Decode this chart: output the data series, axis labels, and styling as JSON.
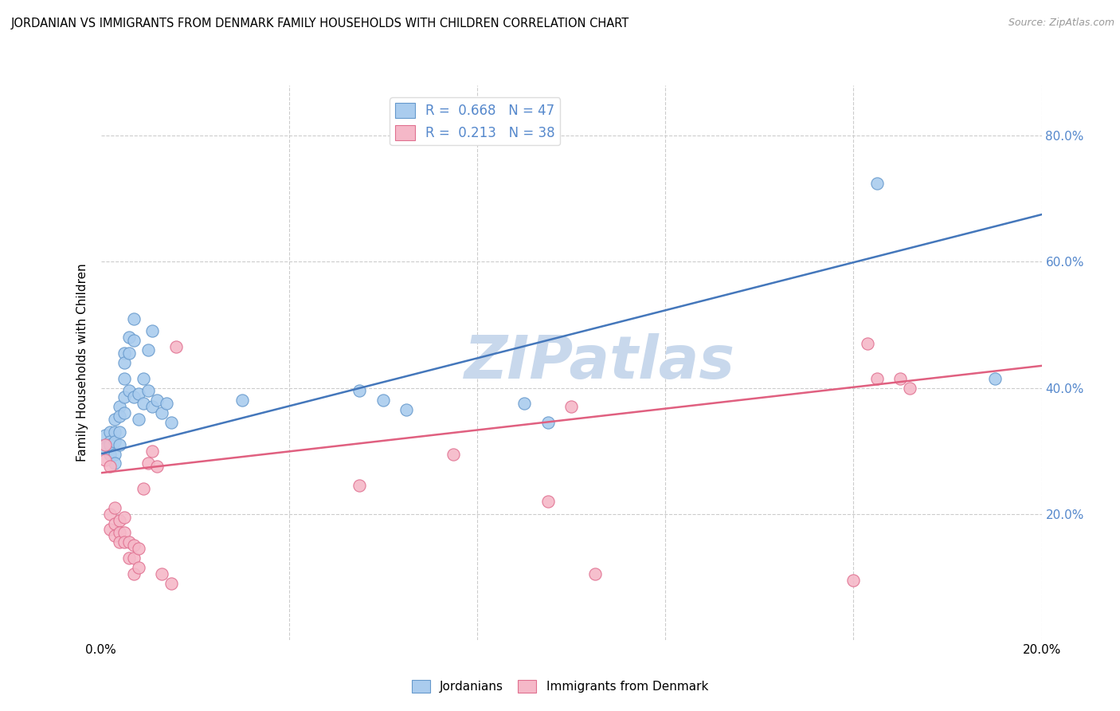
{
  "title": "JORDANIAN VS IMMIGRANTS FROM DENMARK FAMILY HOUSEHOLDS WITH CHILDREN CORRELATION CHART",
  "source": "Source: ZipAtlas.com",
  "ylabel": "Family Households with Children",
  "xlim": [
    0.0,
    0.2
  ],
  "ylim": [
    0.0,
    0.88
  ],
  "xticks": [
    0.0,
    0.04,
    0.08,
    0.12,
    0.16,
    0.2
  ],
  "yticks_right": [
    0.2,
    0.4,
    0.6,
    0.8
  ],
  "blue_R": 0.668,
  "blue_N": 47,
  "pink_R": 0.213,
  "pink_N": 38,
  "blue_fill_color": "#AACCEE",
  "pink_fill_color": "#F5B8C8",
  "blue_edge_color": "#6699CC",
  "pink_edge_color": "#E07090",
  "blue_line_color": "#4477BB",
  "pink_line_color": "#E06080",
  "tick_label_color": "#5588CC",
  "watermark_color": "#C8D8EC",
  "blue_scatter_x": [
    0.001,
    0.001,
    0.001,
    0.002,
    0.002,
    0.002,
    0.002,
    0.003,
    0.003,
    0.003,
    0.003,
    0.003,
    0.004,
    0.004,
    0.004,
    0.004,
    0.005,
    0.005,
    0.005,
    0.005,
    0.005,
    0.006,
    0.006,
    0.006,
    0.007,
    0.007,
    0.007,
    0.008,
    0.008,
    0.009,
    0.009,
    0.01,
    0.01,
    0.011,
    0.011,
    0.012,
    0.013,
    0.014,
    0.015,
    0.03,
    0.055,
    0.06,
    0.065,
    0.09,
    0.095,
    0.165,
    0.19
  ],
  "blue_scatter_y": [
    0.31,
    0.325,
    0.305,
    0.33,
    0.315,
    0.295,
    0.31,
    0.35,
    0.33,
    0.315,
    0.295,
    0.28,
    0.37,
    0.355,
    0.33,
    0.31,
    0.455,
    0.44,
    0.415,
    0.385,
    0.36,
    0.48,
    0.455,
    0.395,
    0.51,
    0.475,
    0.385,
    0.39,
    0.35,
    0.415,
    0.375,
    0.46,
    0.395,
    0.49,
    0.37,
    0.38,
    0.36,
    0.375,
    0.345,
    0.38,
    0.395,
    0.38,
    0.365,
    0.375,
    0.345,
    0.725,
    0.415
  ],
  "pink_scatter_x": [
    0.001,
    0.001,
    0.002,
    0.002,
    0.002,
    0.003,
    0.003,
    0.003,
    0.004,
    0.004,
    0.004,
    0.005,
    0.005,
    0.005,
    0.006,
    0.006,
    0.007,
    0.007,
    0.007,
    0.008,
    0.008,
    0.009,
    0.01,
    0.011,
    0.012,
    0.013,
    0.015,
    0.016,
    0.055,
    0.075,
    0.095,
    0.1,
    0.105,
    0.16,
    0.163,
    0.165,
    0.17,
    0.172
  ],
  "pink_scatter_y": [
    0.31,
    0.285,
    0.275,
    0.2,
    0.175,
    0.21,
    0.185,
    0.165,
    0.19,
    0.17,
    0.155,
    0.195,
    0.17,
    0.155,
    0.155,
    0.13,
    0.15,
    0.13,
    0.105,
    0.145,
    0.115,
    0.24,
    0.28,
    0.3,
    0.275,
    0.105,
    0.09,
    0.465,
    0.245,
    0.295,
    0.22,
    0.37,
    0.105,
    0.095,
    0.47,
    0.415,
    0.415,
    0.4
  ],
  "blue_line_x": [
    0.0,
    0.2
  ],
  "blue_line_y": [
    0.295,
    0.675
  ],
  "pink_line_x": [
    0.0,
    0.2
  ],
  "pink_line_y": [
    0.265,
    0.435
  ],
  "background_color": "#FFFFFF",
  "grid_color": "#CCCCCC"
}
